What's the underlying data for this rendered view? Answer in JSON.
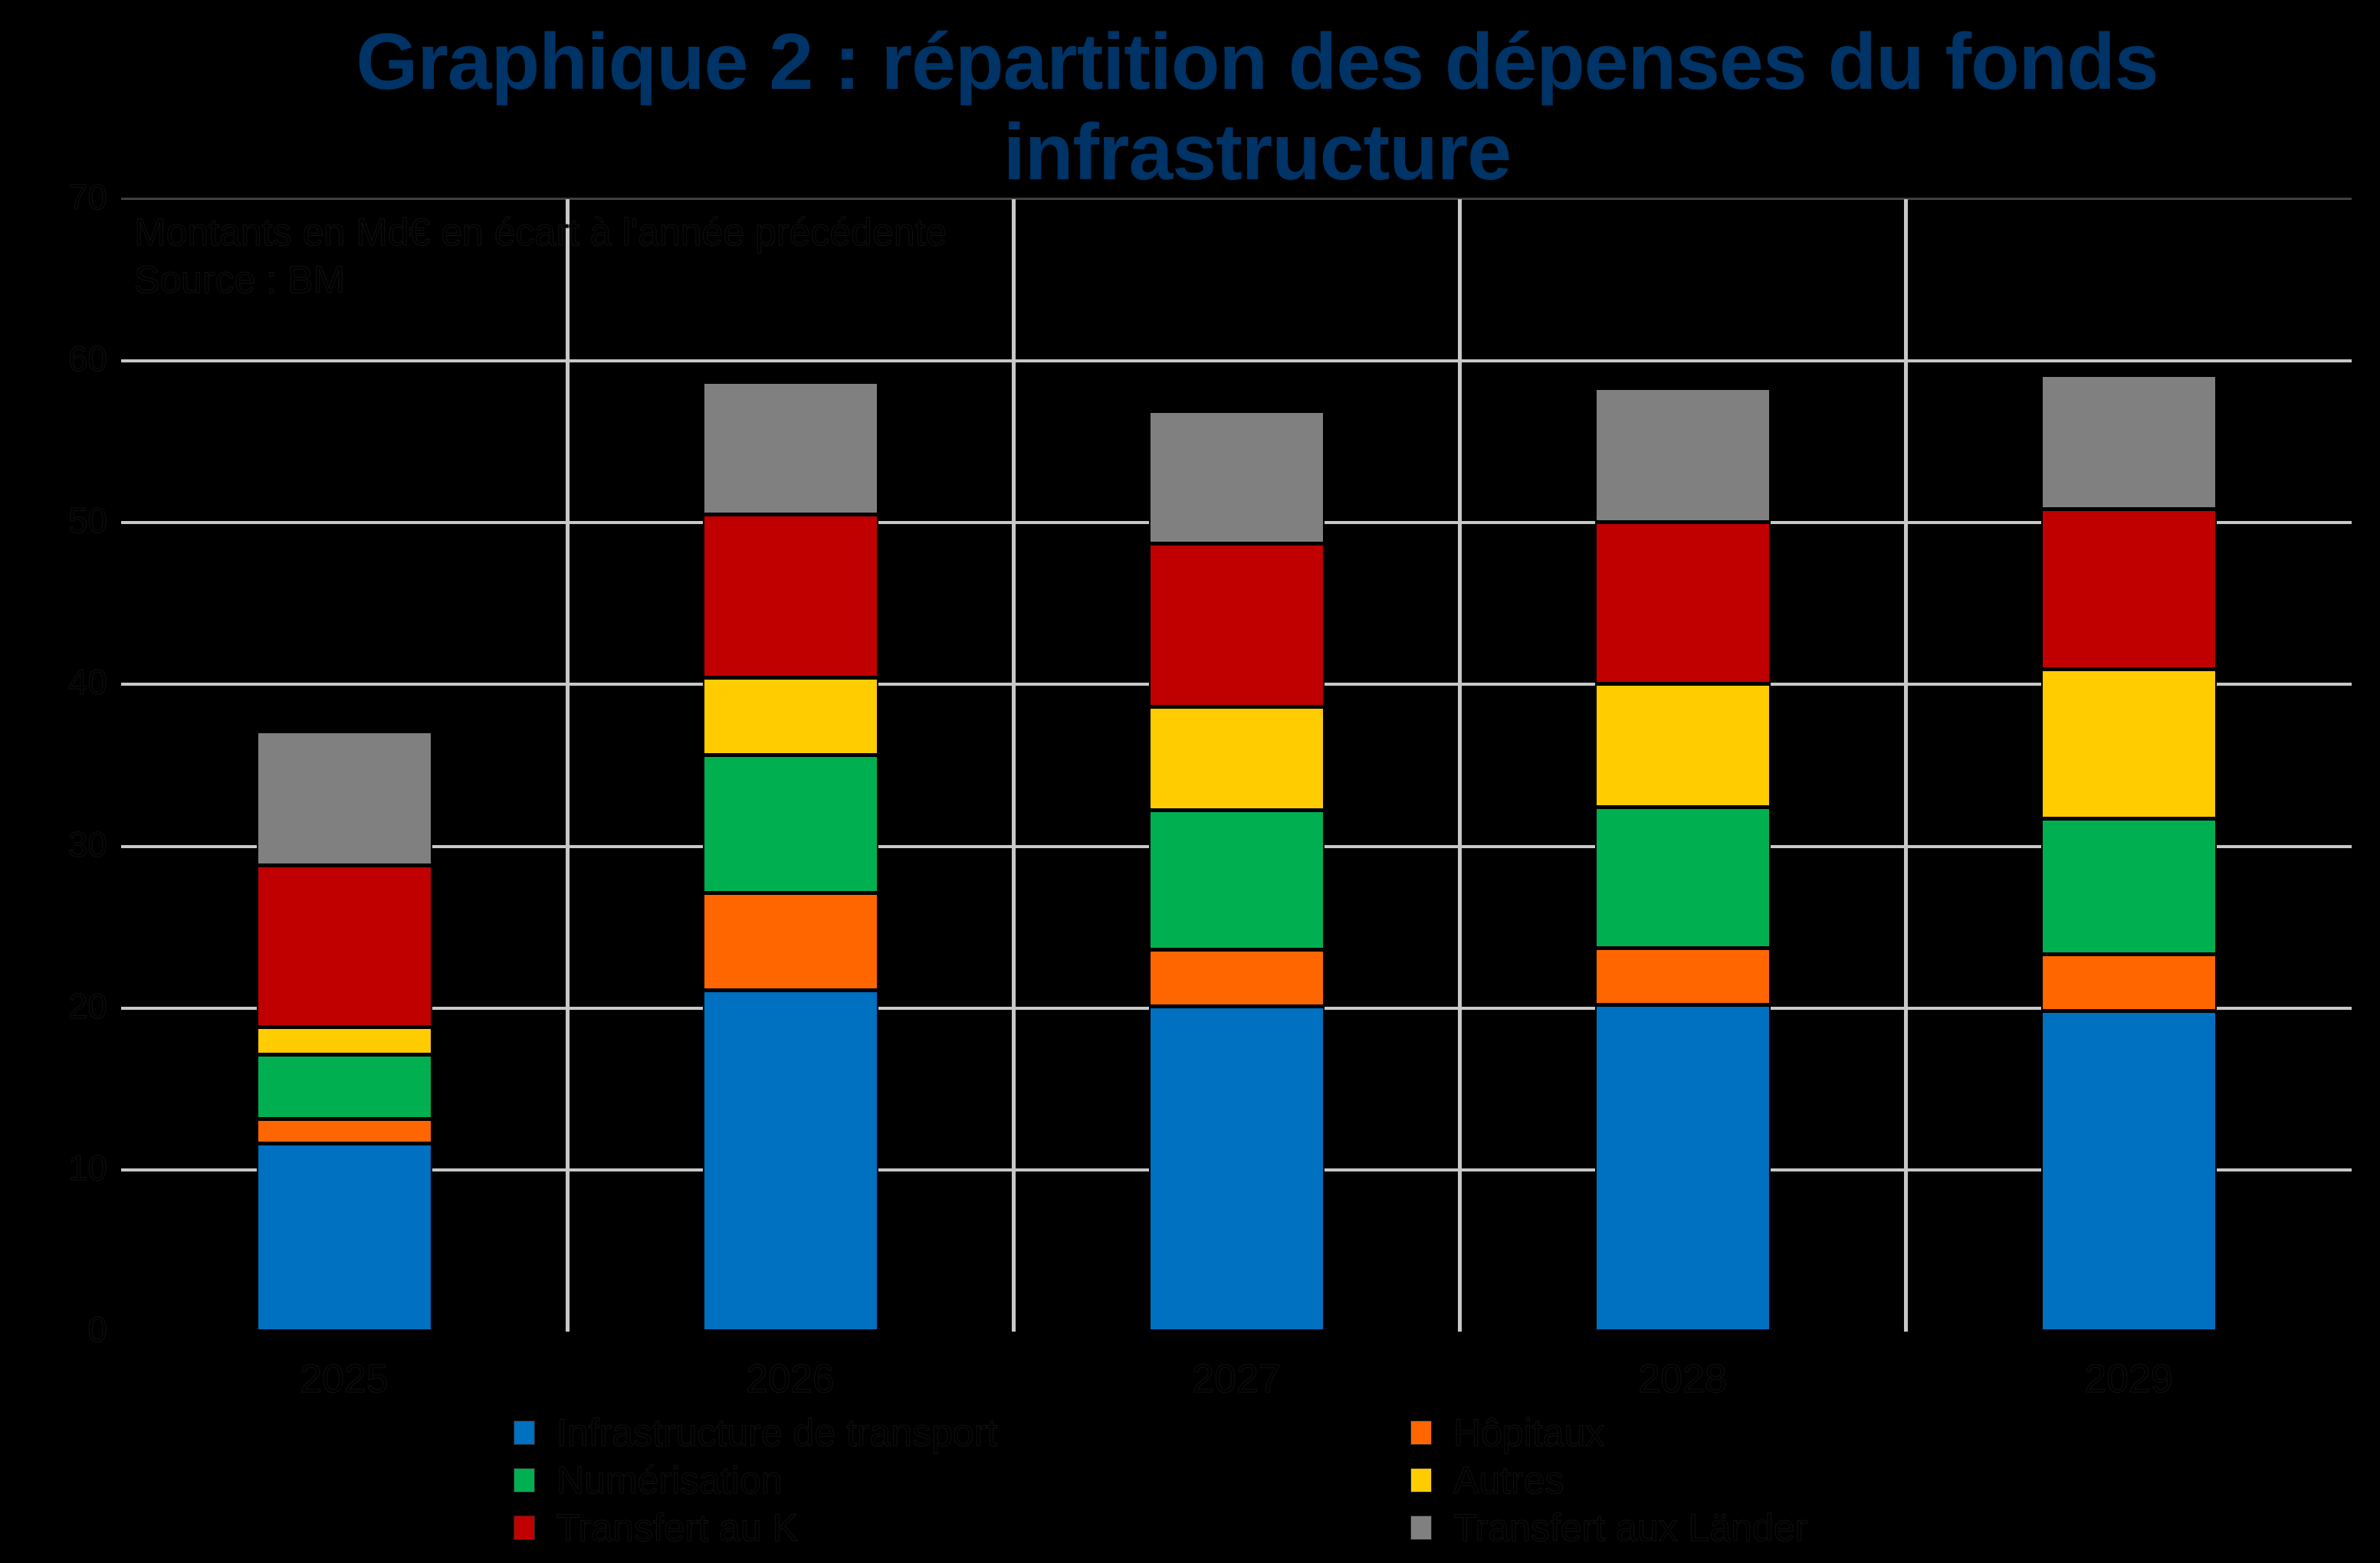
{
  "title": {
    "line1": "Graphique 2 : répartition des dépenses du fonds",
    "line2": "infrastructure"
  },
  "annotation": {
    "units": "Montants en Md€ en écart à l'année précédente",
    "source": "Source : BM"
  },
  "y_axis": {
    "ticks": [
      "0",
      "10",
      "20",
      "30",
      "40",
      "50",
      "60",
      "70"
    ]
  },
  "x_axis": {
    "ticks": [
      "2025",
      "2026",
      "2027",
      "2028",
      "2029"
    ]
  },
  "legend": [
    {
      "label": "Infrastructure de transport",
      "color": "#0070C0"
    },
    {
      "label": "Hôpitaux",
      "color": "#FF6600"
    },
    {
      "label": "Numérisation",
      "color": "#00B050"
    },
    {
      "label": "Autres",
      "color": "#FFCC00"
    },
    {
      "label": "Transfert au K",
      "color": "#C00000"
    },
    {
      "label": "Transfert aux Länder",
      "color": "#808080"
    }
  ],
  "chart_data": {
    "type": "bar",
    "stacked": true,
    "title": "Graphique 2 : répartition des dépenses du fonds infrastructure",
    "subtitle": "Montants en Md€ en écart à l'année précédente",
    "source": "Source : BM",
    "xlabel": "",
    "ylabel": "",
    "ylim": [
      0,
      70
    ],
    "yticks": [
      0,
      10,
      20,
      30,
      40,
      50,
      60,
      70
    ],
    "grid": true,
    "legend_position": "bottom",
    "categories": [
      "2025",
      "2026",
      "2027",
      "2028",
      "2029"
    ],
    "series": [
      {
        "name": "Infrastructure de transport",
        "color": "#0070C0",
        "values": [
          11.6,
          21.1,
          20.1,
          20.2,
          19.8
        ]
      },
      {
        "name": "Hôpitaux",
        "color": "#FF6600",
        "values": [
          1.5,
          6.0,
          3.5,
          3.5,
          3.5
        ]
      },
      {
        "name": "Numérisation",
        "color": "#00B050",
        "values": [
          4.0,
          8.5,
          8.6,
          8.7,
          8.4
        ]
      },
      {
        "name": "Autres",
        "color": "#FFCC00",
        "values": [
          1.7,
          4.8,
          6.4,
          7.6,
          9.2
        ]
      },
      {
        "name": "Transfert au K",
        "color": "#C00000",
        "values": [
          10.0,
          10.1,
          10.1,
          10.0,
          9.9
        ]
      },
      {
        "name": "Transfert aux Länder",
        "color": "#808080",
        "values": [
          8.3,
          8.2,
          8.2,
          8.3,
          8.3
        ]
      }
    ],
    "totals": [
      37.1,
      58.7,
      56.9,
      58.3,
      59.1
    ]
  }
}
